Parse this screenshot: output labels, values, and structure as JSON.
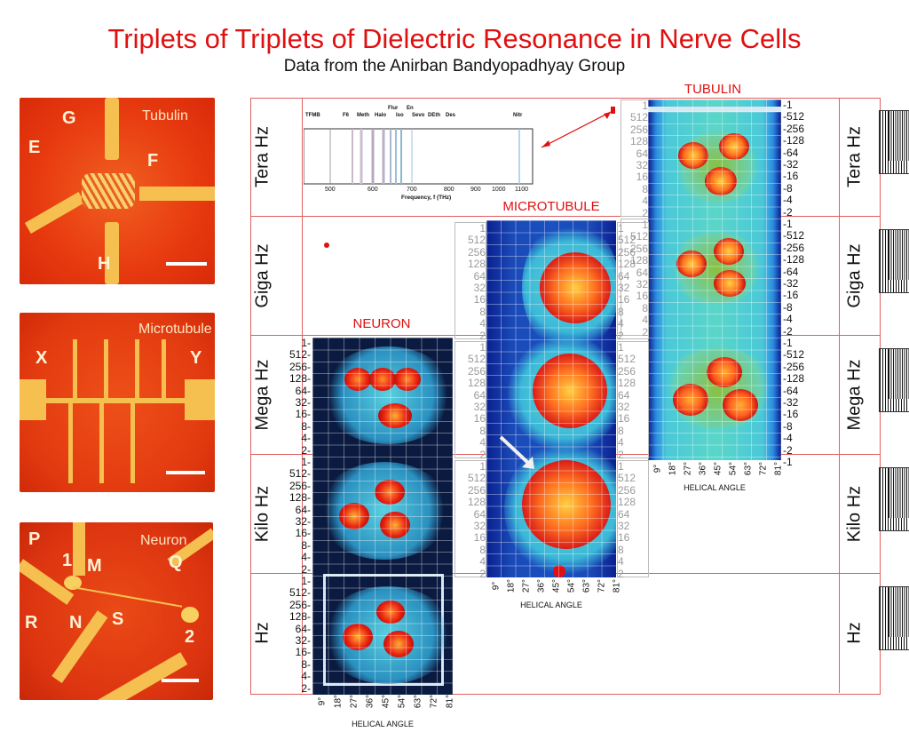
{
  "title": "Triplets of Triplets of Dielectric Resonance in Nerve Cells",
  "subtitle": "Data from the Anirban Bandyopadhyay Group",
  "photos": [
    {
      "label": "Tubulin",
      "letters": [
        "G",
        "E",
        "F",
        "H"
      ]
    },
    {
      "label": "Microtubule",
      "letters": [
        "X",
        "Y"
      ]
    },
    {
      "label": "Neuron",
      "letters": [
        "P",
        "1",
        "M",
        "Q",
        "R",
        "N",
        "S",
        "2"
      ]
    }
  ],
  "bands": [
    "Tera Hz",
    "Giga Hz",
    "Mega Hz",
    "Kilo Hz",
    "Hz"
  ],
  "sections": {
    "tubulin": "TUBULIN",
    "microtubule": "MICROTUBULE",
    "neuron": "NEURON"
  },
  "y_ticks": [
    "1-",
    "512-",
    "256-",
    "128-",
    "64-",
    "32-",
    "16-",
    "8-",
    "4-",
    "2-"
  ],
  "y_ticks_plain": [
    "1",
    "512",
    "256",
    "128",
    "64",
    "32",
    "16",
    "8",
    "4",
    "2"
  ],
  "tubulin_ticks": [
    "-1",
    "-512",
    "-256",
    "-128",
    "-64",
    "-32",
    "-16",
    "-8",
    "-4",
    "-2"
  ],
  "x_ticks": [
    "9°",
    "18°",
    "27°",
    "36°",
    "45°",
    "54°",
    "63°",
    "72°",
    "81°"
  ],
  "x_axis_title": "HELICAL ANGLE",
  "spectrum": {
    "labels": [
      "TFMB",
      "F6",
      "Meth",
      "Halo",
      "Flur",
      "Iso",
      "En",
      "Sevo",
      "DEth",
      "Des",
      "Nitr"
    ],
    "ticks": [
      "500",
      "600",
      "700",
      "800",
      "900",
      "1000",
      "1100"
    ],
    "xlabel": "Frequency, f (THz)"
  }
}
